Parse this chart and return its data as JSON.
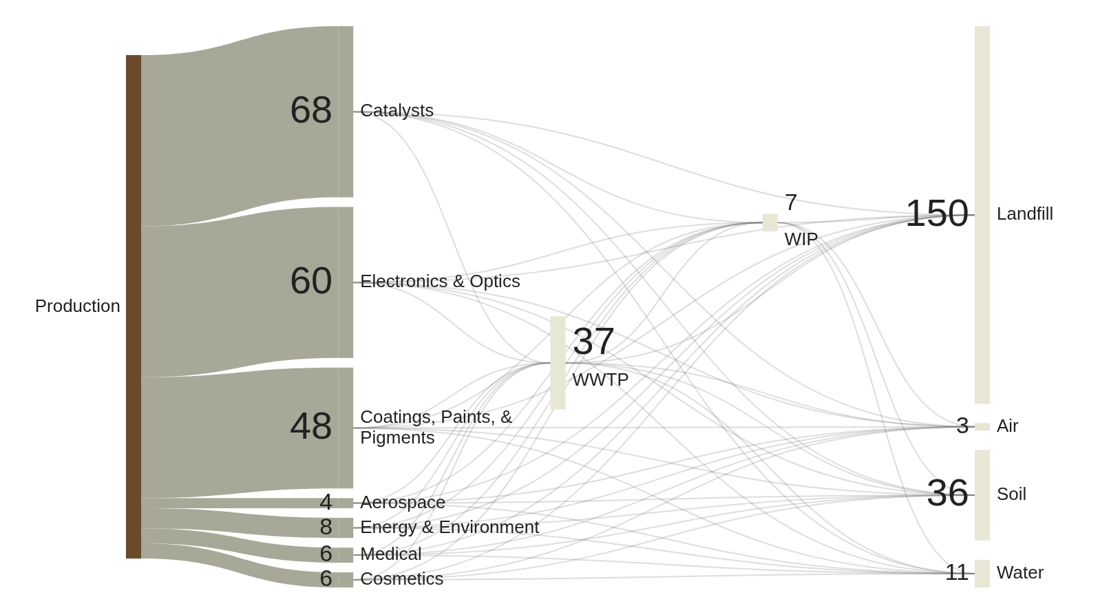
{
  "chart_data": {
    "type": "other",
    "data_labels": true,
    "categories": [
      "Production",
      "Catalysts",
      "Electronics & Optics",
      "Coatings, Paints, & Pigments",
      "Aerospace",
      "Energy & Environment",
      "Medical",
      "Cosmetics",
      "WWTP",
      "WIP",
      "Landfill",
      "Air",
      "Soil",
      "Water"
    ],
    "values": [
      null,
      68,
      60,
      48,
      4,
      8,
      6,
      6,
      37,
      7,
      150,
      3,
      36,
      11
    ],
    "colors": [
      "#6b4a2b",
      "#a8a898",
      "#a8a898",
      "#a8a898",
      "#a8a898",
      "#a8a898",
      "#a8a898",
      "#a8a898",
      "#e8e6d4",
      "#e8e6d4",
      "#e8e6d4",
      "#e8e6d4",
      "#e8e6d4",
      "#e8e6d4"
    ]
  }
}
